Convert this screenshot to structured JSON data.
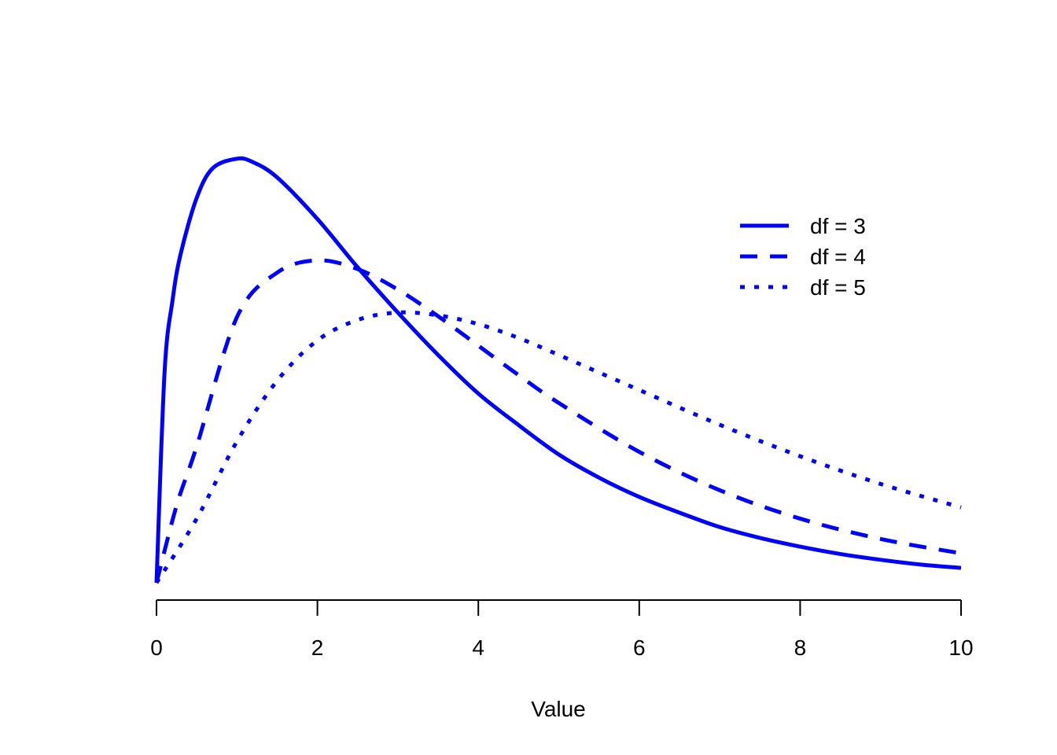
{
  "chart_data": {
    "type": "line",
    "title": "",
    "xlabel": "Value",
    "ylabel": "",
    "xlim": [
      0,
      10
    ],
    "ylim": [
      0,
      0.2446
    ],
    "x_ticks": [
      "0",
      "2",
      "4",
      "6",
      "8",
      "10"
    ],
    "y_axis_shown": false,
    "grid": false,
    "legend_position": "top-right",
    "line_color": "#0000FF",
    "series": [
      {
        "name": "df = 3",
        "style": "solid",
        "x": [
          0,
          0.1,
          0.2,
          0.3,
          0.5,
          0.7,
          1,
          1.2,
          1.5,
          2,
          2.5,
          3,
          3.5,
          4,
          4.5,
          5,
          5.5,
          6,
          6.5,
          7,
          7.5,
          8,
          8.5,
          9,
          9.5,
          10
        ],
        "values": [
          0,
          0.12,
          0.1614,
          0.1876,
          0.2197,
          0.2366,
          0.242,
          0.24,
          0.2313,
          0.2076,
          0.18,
          0.1542,
          0.13,
          0.108,
          0.09,
          0.0732,
          0.06,
          0.049,
          0.04,
          0.0318,
          0.0256,
          0.0206,
          0.0164,
          0.0131,
          0.0104,
          0.0085
        ]
      },
      {
        "name": "df = 4",
        "style": "dashed",
        "x": [
          0,
          0.25,
          0.5,
          1,
          1.5,
          2,
          2.5,
          3,
          3.5,
          4,
          4.5,
          5,
          6,
          7,
          8,
          9,
          10
        ],
        "values": [
          0,
          0.0441,
          0.0779,
          0.1516,
          0.177,
          0.184,
          0.179,
          0.1673,
          0.1521,
          0.1353,
          0.1185,
          0.1026,
          0.0747,
          0.0528,
          0.0366,
          0.025,
          0.0168
        ]
      },
      {
        "name": "df = 5",
        "style": "dotted",
        "x": [
          0,
          0.5,
          1,
          1.5,
          2,
          2.5,
          3,
          3.5,
          4,
          4.5,
          5,
          6,
          7,
          8,
          9,
          10
        ],
        "values": [
          0,
          0.0366,
          0.0807,
          0.1153,
          0.1383,
          0.15,
          0.1542,
          0.1526,
          0.1476,
          0.1397,
          0.13,
          0.11,
          0.0902,
          0.0722,
          0.0564,
          0.043
        ]
      }
    ]
  }
}
